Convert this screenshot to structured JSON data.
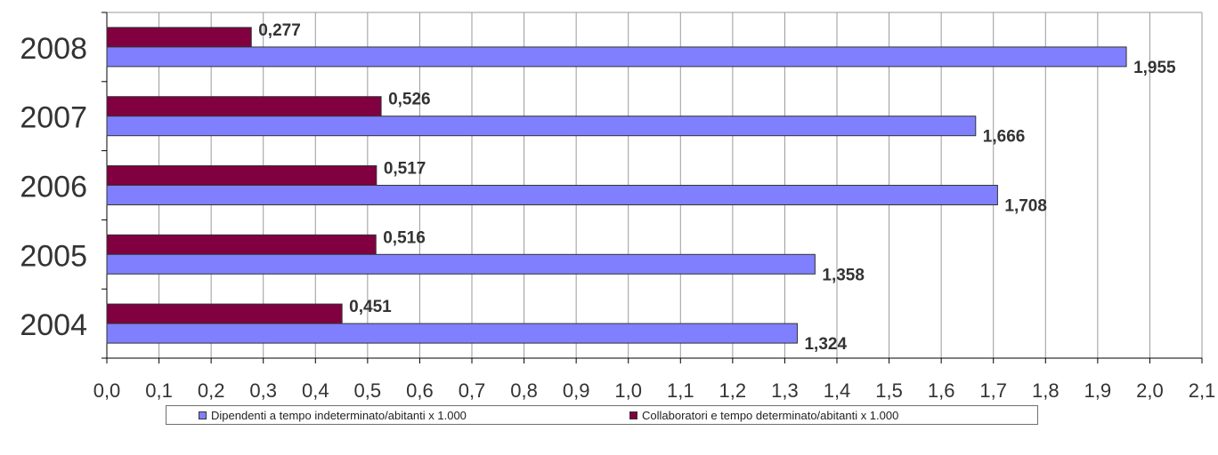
{
  "chart_data": {
    "type": "bar",
    "orientation": "horizontal",
    "categories": [
      "2004",
      "2005",
      "2006",
      "2007",
      "2008"
    ],
    "series": [
      {
        "name": "Collaboratori e tempo determinato/abitanti  x 1.000",
        "color": "#800040",
        "values": [
          0.451,
          0.516,
          0.517,
          0.526,
          0.277
        ],
        "labels": [
          "0,451",
          "0,516",
          "0,517",
          "0,526",
          "0,277"
        ]
      },
      {
        "name": "Dipendenti a tempo indeterminato/abitanti x 1.000",
        "color": "#8080ff",
        "values": [
          1.324,
          1.358,
          1.708,
          1.666,
          1.955
        ],
        "labels": [
          "1,324",
          "1,358",
          "1,708",
          "1,666",
          "1,955"
        ]
      }
    ],
    "xlim": [
      0,
      2.1
    ],
    "x_ticks": [
      "0,0",
      "0,1",
      "0,2",
      "0,3",
      "0,4",
      "0,5",
      "0,6",
      "0,7",
      "0,8",
      "0,9",
      "1,0",
      "1,1",
      "1,2",
      "1,3",
      "1,4",
      "1,5",
      "1,6",
      "1,7",
      "1,8",
      "1,9",
      "2,0",
      "2,1"
    ],
    "grid": "vertical",
    "legend_position": "bottom"
  }
}
